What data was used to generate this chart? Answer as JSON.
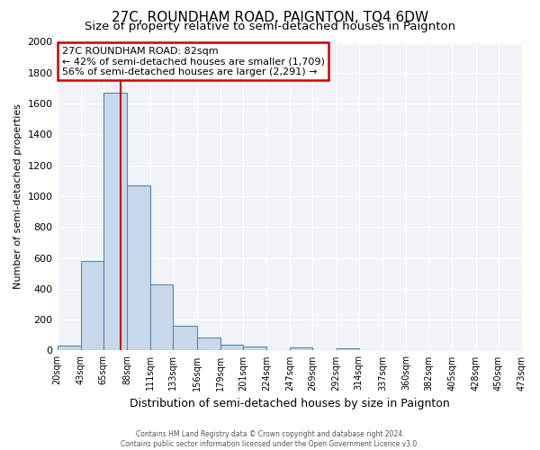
{
  "title": "27C, ROUNDHAM ROAD, PAIGNTON, TQ4 6DW",
  "subtitle": "Size of property relative to semi-detached houses in Paignton",
  "xlabel": "Distribution of semi-detached houses by size in Paignton",
  "ylabel": "Number of semi-detached properties",
  "bin_edges": [
    20,
    43,
    65,
    88,
    111,
    133,
    156,
    179,
    201,
    224,
    247,
    269,
    292,
    314,
    337,
    360,
    382,
    405,
    428,
    450,
    473
  ],
  "bar_heights": [
    30,
    580,
    1670,
    1070,
    430,
    160,
    85,
    35,
    28,
    0,
    20,
    0,
    15,
    0,
    0,
    0,
    0,
    0,
    0,
    0
  ],
  "bar_color": "#c8d8ea",
  "bar_edge_color": "#5588aa",
  "property_value": 82,
  "vline_color": "#cc0000",
  "annotation_title": "27C ROUNDHAM ROAD: 82sqm",
  "annotation_line1": "← 42% of semi-detached houses are smaller (1,709)",
  "annotation_line2": "56% of semi-detached houses are larger (2,291) →",
  "annotation_box_color": "#cc0000",
  "ylim": [
    0,
    2000
  ],
  "yticks": [
    0,
    200,
    400,
    600,
    800,
    1000,
    1200,
    1400,
    1600,
    1800,
    2000
  ],
  "tick_labels": [
    "20sqm",
    "43sqm",
    "65sqm",
    "88sqm",
    "111sqm",
    "133sqm",
    "156sqm",
    "179sqm",
    "201sqm",
    "224sqm",
    "247sqm",
    "269sqm",
    "292sqm",
    "314sqm",
    "337sqm",
    "360sqm",
    "382sqm",
    "405sqm",
    "428sqm",
    "450sqm",
    "473sqm"
  ],
  "footer_line1": "Contains HM Land Registry data © Crown copyright and database right 2024.",
  "footer_line2": "Contains public sector information licensed under the Open Government Licence v3.0.",
  "fig_bg_color": "#ffffff",
  "plot_bg_color": "#f0f4f8",
  "grid_color": "#ffffff",
  "title_fontsize": 11,
  "subtitle_fontsize": 9.5
}
